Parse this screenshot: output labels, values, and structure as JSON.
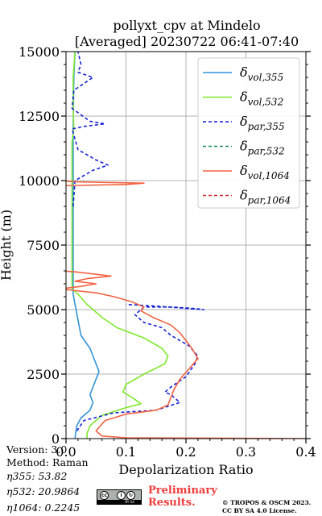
{
  "header": {
    "title_line1": "pollyxt_cpv at Mindelo",
    "title_line2": "[Averaged] 20230722 06:41-07:40"
  },
  "footer": {
    "version": "Version: 3.0",
    "method": "Method: Raman",
    "eta355": "η355:  53.82",
    "eta532": "η532: 20.9864",
    "eta1064": "η1064: 0.2245",
    "badge_icon": "cc-by-sa-badge",
    "badge_text": "BY  SA",
    "preliminary_line1": "Preliminary",
    "preliminary_line2": "Results.",
    "copyright_line1": "© TROPOS & OSCM 2023.",
    "copyright_line2": "CC BY SA 4.0 License."
  },
  "chart_data": {
    "type": "line",
    "title": "pollyxt_cpv at Mindelo\n[Averaged] 20230722 06:41-07:40",
    "xlabel": "Depolarization Ratio",
    "ylabel": "Height (m)",
    "xlim": [
      0.0,
      0.4
    ],
    "ylim": [
      0,
      15000
    ],
    "xticks": [
      "0.0",
      "0.1",
      "0.2",
      "0.3",
      "0.4"
    ],
    "xtick_values": [
      0.0,
      0.1,
      0.2,
      0.3,
      0.4
    ],
    "yticks": [
      "0",
      "2500",
      "5000",
      "7500",
      "10000",
      "12500",
      "15000"
    ],
    "ytick_values": [
      0,
      2500,
      5000,
      7500,
      10000,
      12500,
      15000
    ],
    "grid": true,
    "legend_position": "top-right",
    "series": [
      {
        "name": "δvol,355",
        "base": "δ",
        "sub": "vol,355",
        "color": "#3194d8",
        "dash": "solid",
        "points": [
          [
            0.015,
            0
          ],
          [
            0.016,
            200
          ],
          [
            0.018,
            500
          ],
          [
            0.025,
            800
          ],
          [
            0.04,
            1100
          ],
          [
            0.045,
            1400
          ],
          [
            0.04,
            1700
          ],
          [
            0.045,
            2000
          ],
          [
            0.05,
            2300
          ],
          [
            0.055,
            2600
          ],
          [
            0.05,
            2900
          ],
          [
            0.045,
            3200
          ],
          [
            0.04,
            3500
          ],
          [
            0.025,
            4000
          ],
          [
            0.02,
            4600
          ],
          [
            0.015,
            5200
          ],
          [
            0.012,
            5600
          ],
          [
            0.012,
            6500
          ],
          [
            0.012,
            8000
          ],
          [
            0.012,
            10000
          ],
          [
            0.012,
            12000
          ],
          [
            0.013,
            14000
          ],
          [
            0.015,
            15000
          ]
        ]
      },
      {
        "name": "δvol,532",
        "base": "δ",
        "sub": "vol,532",
        "color": "#7fe82b",
        "dash": "solid",
        "points": [
          [
            0.035,
            0
          ],
          [
            0.035,
            200
          ],
          [
            0.04,
            500
          ],
          [
            0.06,
            900
          ],
          [
            0.1,
            1200
          ],
          [
            0.125,
            1350
          ],
          [
            0.11,
            1600
          ],
          [
            0.095,
            1800
          ],
          [
            0.1,
            2100
          ],
          [
            0.13,
            2500
          ],
          [
            0.165,
            2900
          ],
          [
            0.17,
            3200
          ],
          [
            0.16,
            3500
          ],
          [
            0.13,
            3900
          ],
          [
            0.085,
            4300
          ],
          [
            0.06,
            4700
          ],
          [
            0.035,
            5200
          ],
          [
            0.02,
            5600
          ],
          [
            0.01,
            5800
          ],
          [
            0.01,
            6500
          ],
          [
            0.01,
            8000
          ],
          [
            0.01,
            10000
          ],
          [
            0.01,
            11500
          ],
          [
            0.013,
            12000
          ],
          [
            0.012,
            13000
          ],
          [
            0.012,
            14000
          ],
          [
            0.015,
            15000
          ]
        ]
      },
      {
        "name": "δpar,355",
        "base": "δ",
        "sub": "par,355",
        "color": "#1320d8",
        "dash": "4,3",
        "points": [
          [
            0.018,
            300
          ],
          [
            0.03,
            700
          ],
          [
            0.08,
            1000
          ],
          [
            0.15,
            1100
          ],
          [
            0.19,
            1400
          ],
          [
            0.175,
            1700
          ],
          [
            0.165,
            1800
          ],
          [
            0.175,
            2000
          ],
          [
            0.2,
            2400
          ],
          [
            0.215,
            2900
          ],
          [
            0.22,
            3200
          ],
          [
            0.205,
            3600
          ],
          [
            0.175,
            4000
          ],
          [
            0.16,
            4300
          ],
          [
            0.13,
            4500
          ],
          [
            0.115,
            4800
          ],
          [
            0.13,
            5100
          ],
          [
            0.175,
            5100
          ],
          [
            0.21,
            5050
          ],
          [
            0.23,
            5000
          ],
          [
            0.2,
            5050
          ],
          [
            0.14,
            5150
          ],
          [
            0.1,
            5200
          ],
          null,
          [
            0.012,
            9000
          ],
          [
            0.015,
            10000
          ],
          [
            0.045,
            10400
          ],
          [
            0.07,
            10600
          ],
          [
            0.05,
            10800
          ],
          [
            0.02,
            11200
          ],
          [
            0.01,
            12000
          ],
          [
            0.03,
            12100
          ],
          [
            0.065,
            12200
          ],
          [
            0.04,
            12300
          ],
          [
            0.01,
            12800
          ],
          [
            0.013,
            13500
          ],
          [
            0.045,
            14000
          ],
          [
            0.02,
            14200
          ],
          [
            0.025,
            14500
          ],
          [
            0.02,
            15000
          ]
        ]
      },
      {
        "name": "δpar,532",
        "base": "δ",
        "sub": "par,532",
        "color": "#1a8f55",
        "dash": "4,3",
        "points": []
      },
      {
        "name": "δvol,1064",
        "base": "δ",
        "sub": "vol,1064",
        "color": "#f36241",
        "dash": "solid",
        "points": [
          [
            0.4,
            0
          ],
          [
            0.1,
            30
          ],
          [
            0.06,
            100
          ],
          [
            0.05,
            300
          ],
          [
            0.065,
            700
          ],
          [
            0.1,
            950
          ],
          [
            0.15,
            1100
          ],
          [
            0.17,
            1300
          ],
          [
            0.175,
            1600
          ],
          [
            0.18,
            1900
          ],
          [
            0.19,
            2300
          ],
          [
            0.205,
            2700
          ],
          [
            0.22,
            3100
          ],
          [
            0.21,
            3500
          ],
          [
            0.2,
            3800
          ],
          [
            0.19,
            4100
          ],
          [
            0.175,
            4400
          ],
          [
            0.145,
            4700
          ],
          [
            0.125,
            4950
          ],
          [
            0.13,
            5100
          ],
          [
            0.11,
            5300
          ],
          [
            0.08,
            5500
          ],
          [
            0.05,
            5650
          ],
          [
            0.01,
            5750
          ],
          [
            -0.01,
            5800
          ],
          [
            0.025,
            5900
          ],
          [
            0.05,
            6000
          ],
          [
            0.015,
            6100
          ],
          [
            0.035,
            6200
          ],
          [
            0.075,
            6300
          ],
          [
            0.02,
            6450
          ],
          [
            -0.005,
            6500
          ],
          [
            -0.008,
            6600
          ],
          null,
          [
            -0.01,
            9800
          ],
          [
            0.1,
            9850
          ],
          [
            0.13,
            9900
          ],
          [
            0.02,
            9950
          ],
          [
            -0.005,
            9980
          ]
        ]
      },
      {
        "name": "δpar,1064",
        "base": "δ",
        "sub": "par,1064",
        "color": "#d22c2c",
        "dash": "4,3",
        "points": []
      }
    ]
  }
}
